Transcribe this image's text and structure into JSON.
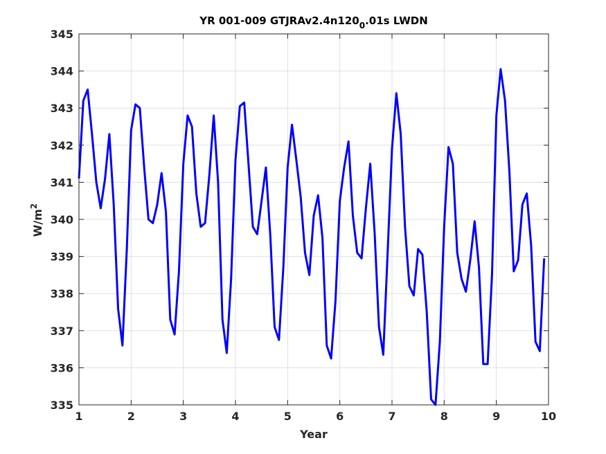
{
  "chart_data": {
    "type": "line",
    "title_main": "YR 001-009 GTJRAv2.4n120",
    "title_sub": "0",
    "title_tail": ".01s LWDN",
    "xlabel": "Year",
    "ylabel_base": "W/m",
    "ylabel_sup": "2",
    "xlim": [
      1,
      10
    ],
    "ylim": [
      335,
      345
    ],
    "xticks": [
      1,
      2,
      3,
      4,
      5,
      6,
      7,
      8,
      9,
      10
    ],
    "yticks": [
      335,
      336,
      337,
      338,
      339,
      340,
      341,
      342,
      343,
      344,
      345
    ],
    "grid": true,
    "colors": {
      "line": "#0000ff",
      "axes": "#262626",
      "grid": "#dfdfdf"
    },
    "series": [
      {
        "x": [
          1.0,
          1.083,
          1.167,
          1.25,
          1.333,
          1.417,
          1.5,
          1.583,
          1.667,
          1.75,
          1.833,
          1.917,
          2.0,
          2.083,
          2.167,
          2.25,
          2.333,
          2.417,
          2.5,
          2.583,
          2.667,
          2.75,
          2.833,
          2.917,
          3.0,
          3.083,
          3.167,
          3.25,
          3.333,
          3.417,
          3.5,
          3.583,
          3.667,
          3.75,
          3.833,
          3.917,
          4.0,
          4.083,
          4.167,
          4.25,
          4.333,
          4.417,
          4.5,
          4.583,
          4.667,
          4.75,
          4.833,
          4.917,
          5.0,
          5.083,
          5.167,
          5.25,
          5.333,
          5.417,
          5.5,
          5.583,
          5.667,
          5.75,
          5.833,
          5.917,
          6.0,
          6.083,
          6.167,
          6.25,
          6.333,
          6.417,
          6.5,
          6.583,
          6.667,
          6.75,
          6.833,
          6.917,
          7.0,
          7.083,
          7.167,
          7.25,
          7.333,
          7.417,
          7.5,
          7.583,
          7.667,
          7.75,
          7.833,
          7.917,
          8.0,
          8.083,
          8.167,
          8.25,
          8.333,
          8.417,
          8.5,
          8.583,
          8.667,
          8.75,
          8.833,
          8.917,
          9.0,
          9.083,
          9.167,
          9.25,
          9.333,
          9.417,
          9.5,
          9.583,
          9.667,
          9.75,
          9.833,
          9.917
        ],
        "y": [
          341.1,
          343.2,
          343.5,
          342.3,
          341.0,
          340.3,
          341.1,
          342.3,
          340.4,
          337.6,
          336.6,
          339.2,
          342.4,
          343.1,
          343.0,
          341.4,
          340.0,
          339.9,
          340.4,
          341.25,
          340.2,
          337.3,
          336.9,
          338.6,
          341.5,
          342.8,
          342.5,
          340.7,
          339.8,
          339.9,
          341.2,
          342.8,
          341.0,
          337.3,
          336.4,
          338.4,
          341.6,
          343.05,
          343.15,
          341.5,
          339.8,
          339.6,
          340.5,
          341.4,
          339.6,
          337.1,
          336.75,
          338.7,
          341.4,
          342.55,
          341.6,
          340.6,
          339.1,
          338.5,
          340.1,
          340.65,
          339.5,
          336.6,
          336.25,
          337.8,
          340.5,
          341.4,
          342.1,
          340.1,
          339.1,
          338.95,
          340.3,
          341.5,
          339.65,
          337.1,
          336.35,
          339.1,
          341.9,
          343.4,
          342.3,
          339.8,
          338.2,
          337.95,
          339.2,
          339.05,
          337.5,
          335.15,
          335.0,
          336.7,
          339.8,
          341.95,
          341.5,
          339.1,
          338.4,
          338.05,
          338.9,
          339.95,
          338.7,
          336.1,
          336.1,
          338.5,
          342.8,
          344.05,
          343.2,
          341.3,
          338.6,
          338.9,
          340.4,
          340.7,
          339.3,
          336.7,
          336.45,
          338.95
        ]
      }
    ]
  }
}
